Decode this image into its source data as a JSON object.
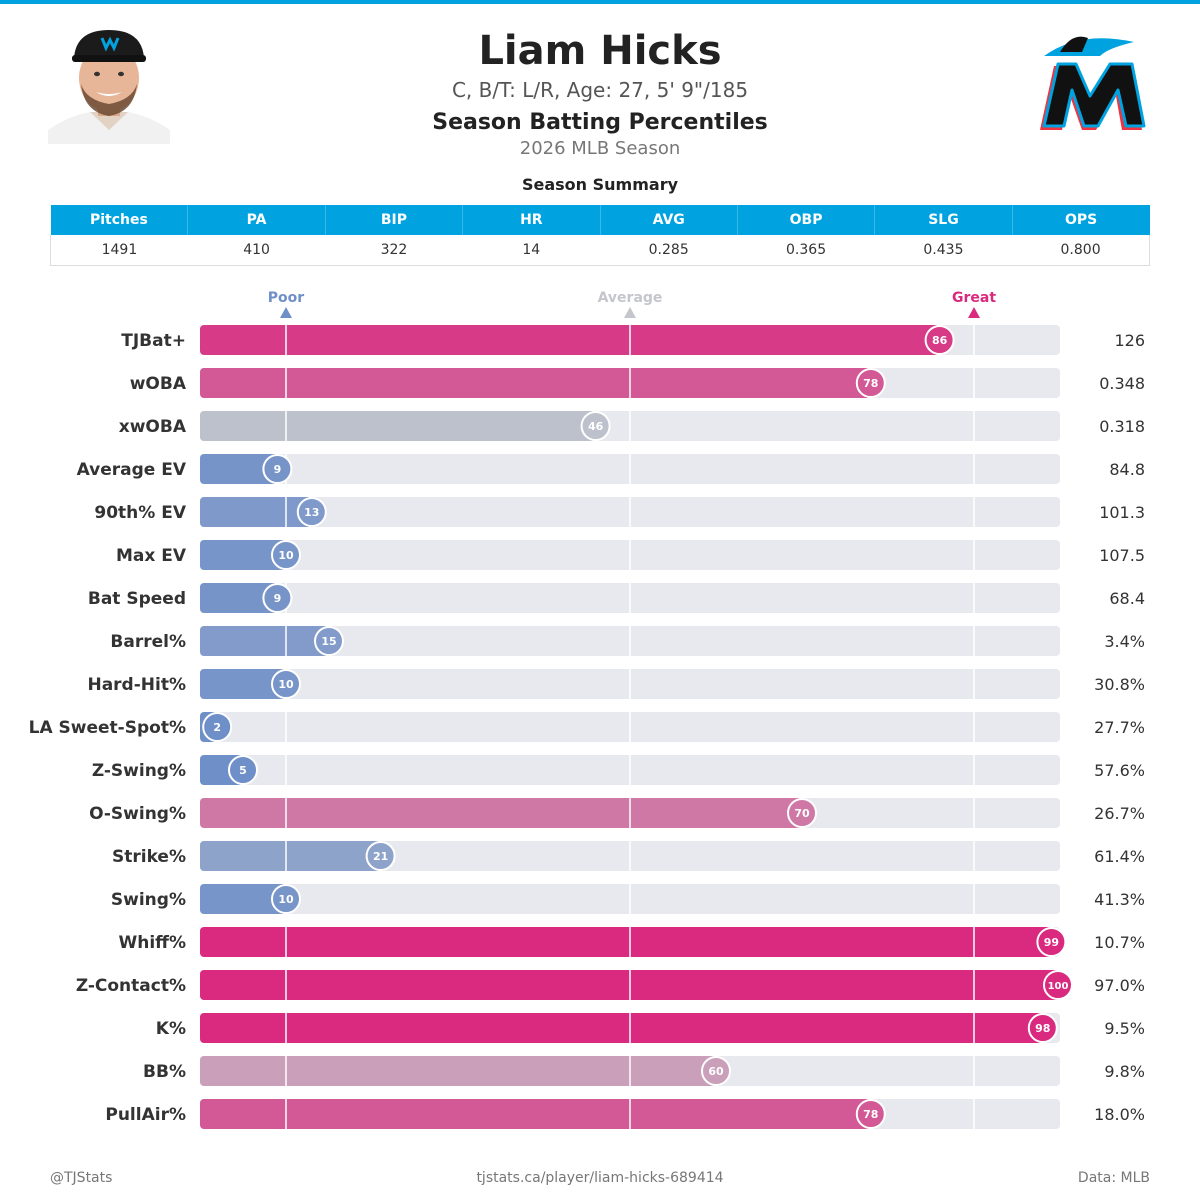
{
  "header": {
    "name": "Liam Hicks",
    "bio": "C, B/T: L/R, Age: 27, 5' 9\"/185",
    "subtitle": "Season Batting Percentiles",
    "season": "2026 MLB Season"
  },
  "summary": {
    "title": "Season Summary",
    "columns": [
      "Pitches",
      "PA",
      "BIP",
      "HR",
      "AVG",
      "OBP",
      "SLG",
      "OPS"
    ],
    "values": [
      "1491",
      "410",
      "322",
      "14",
      "0.285",
      "0.365",
      "0.435",
      "0.800"
    ]
  },
  "scale": {
    "poor": "Poor",
    "average": "Average",
    "great": "Great",
    "poor_color": "#6f8fc9",
    "average_color": "#c4c6cc",
    "great_color": "#d92a7f"
  },
  "chart_data": {
    "type": "bar",
    "orientation": "horizontal",
    "xlim": [
      0,
      100
    ],
    "reference_lines": [
      10,
      50,
      90
    ],
    "categories": [
      "TJBat+",
      "wOBA",
      "xwOBA",
      "Average EV",
      "90th% EV",
      "Max EV",
      "Bat Speed",
      "Barrel%",
      "Hard-Hit%",
      "LA Sweet-Spot%",
      "Z-Swing%",
      "O-Swing%",
      "Strike%",
      "Swing%",
      "Whiff%",
      "Z-Contact%",
      "K%",
      "BB%",
      "PullAir%"
    ],
    "percentiles": [
      86,
      78,
      46,
      9,
      13,
      10,
      9,
      15,
      10,
      2,
      5,
      70,
      21,
      10,
      99,
      100,
      98,
      60,
      78
    ],
    "stat_values": [
      "126",
      "0.348",
      "0.318",
      "84.8",
      "101.3",
      "107.5",
      "68.4",
      "3.4%",
      "30.8%",
      "27.7%",
      "57.6%",
      "26.7%",
      "61.4%",
      "41.3%",
      "10.7%",
      "97.0%",
      "9.5%",
      "9.8%",
      "18.0%"
    ]
  },
  "footer": {
    "handle": "@TJStats",
    "url": "tjstats.ca/player/liam-hicks-689414",
    "source": "Data: MLB"
  }
}
